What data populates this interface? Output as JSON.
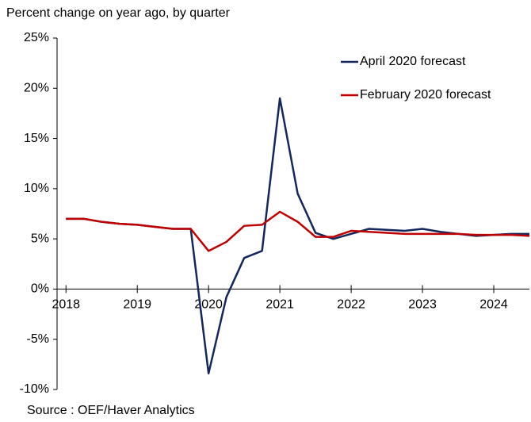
{
  "chart_data": {
    "type": "line",
    "title": "Percent change on year ago, by quarter",
    "source": "Source : OEF/Haver Analytics",
    "x": [
      2018,
      2018.25,
      2018.5,
      2018.75,
      2019,
      2019.25,
      2019.5,
      2019.75,
      2020,
      2020.25,
      2020.5,
      2020.75,
      2021,
      2021.25,
      2021.5,
      2021.75,
      2022,
      2022.25,
      2022.5,
      2022.75,
      2023,
      2023.25,
      2023.5,
      2023.75,
      2024,
      2024.25,
      2024.5
    ],
    "series": [
      {
        "name": "April 2020 forecast",
        "color": "#13275e",
        "values": [
          7.0,
          7.0,
          6.7,
          6.5,
          6.4,
          6.2,
          6.0,
          6.0,
          -8.4,
          -0.8,
          3.1,
          3.8,
          19.0,
          9.5,
          5.6,
          5.0,
          5.5,
          6.0,
          5.9,
          5.8,
          6.0,
          5.7,
          5.5,
          5.3,
          5.4,
          5.5,
          5.5
        ]
      },
      {
        "name": "February 2020 forecast",
        "color": "#c00000",
        "values": [
          7.0,
          7.0,
          6.7,
          6.5,
          6.4,
          6.2,
          6.0,
          6.0,
          3.8,
          4.7,
          6.3,
          6.4,
          7.7,
          6.7,
          5.2,
          5.2,
          5.8,
          5.7,
          5.6,
          5.5,
          5.5,
          5.5,
          5.5,
          5.4,
          5.4,
          5.4,
          5.3
        ]
      }
    ],
    "xlim": [
      2017.875,
      2024.5
    ],
    "xticks": [
      2018,
      2019,
      2020,
      2021,
      2022,
      2023,
      2024
    ],
    "ylim": [
      -10,
      25
    ],
    "yticks": [
      {
        "value": -10,
        "label": "-10%"
      },
      {
        "value": -5,
        "label": "-5%"
      },
      {
        "value": 0,
        "label": "0%"
      },
      {
        "value": 5,
        "label": "5%"
      },
      {
        "value": 10,
        "label": "10%"
      },
      {
        "value": 15,
        "label": "15%"
      },
      {
        "value": 20,
        "label": "20%"
      },
      {
        "value": 25,
        "label": "25%"
      }
    ],
    "grid": false,
    "legend": "top-right"
  }
}
